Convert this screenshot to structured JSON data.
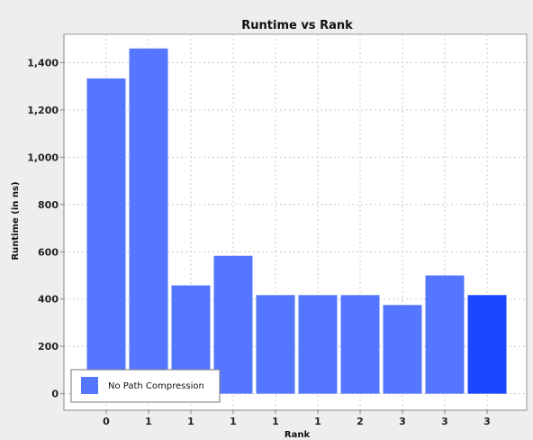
{
  "chart_data": {
    "type": "bar",
    "title": "Runtime vs Rank",
    "xlabel": "Rank",
    "ylabel": "Runtime (in ns)",
    "categories": [
      "0",
      "1",
      "1",
      "1",
      "1",
      "1",
      "2",
      "3",
      "3",
      "3"
    ],
    "series": [
      {
        "name": "No Path Compression",
        "values": [
          1333,
          1460,
          458,
          583,
          417,
          417,
          417,
          375,
          500,
          417
        ]
      }
    ],
    "highlighted_index": 9,
    "yticks": [
      0,
      200,
      400,
      600,
      800,
      1000,
      1200,
      1400
    ],
    "yticks_labels": [
      "0",
      "200",
      "400",
      "600",
      "800",
      "1,000",
      "1,200",
      "1,400"
    ],
    "ylim": [
      -70,
      1520
    ],
    "grid": true,
    "legend_position": "bottom-left",
    "colors": {
      "bar": "#5577ff",
      "bar_highlight": "#1a47ff",
      "plot_bg": "#ffffff",
      "page_bg": "#eeeeee",
      "grid": "#c8c8c8"
    }
  }
}
